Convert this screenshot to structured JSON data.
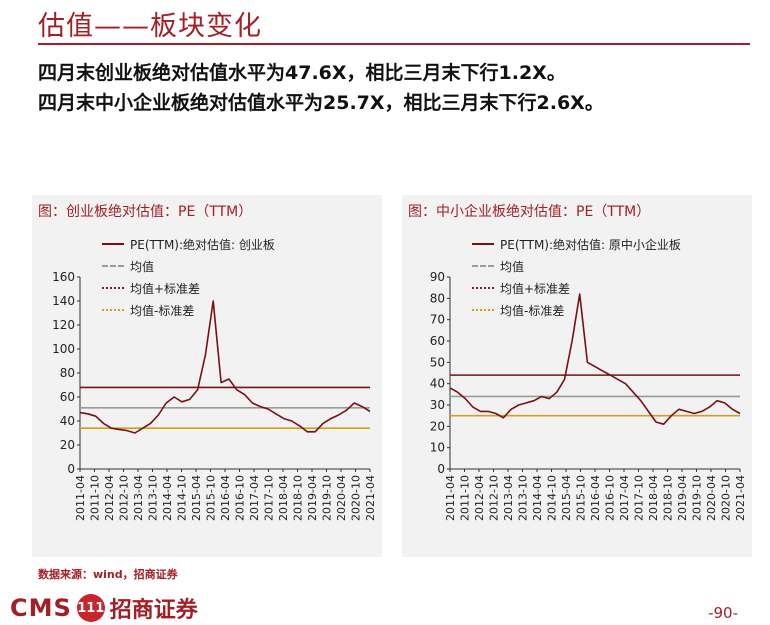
{
  "header": {
    "title": "估值——板块变化"
  },
  "summary": [
    "四月末创业板绝对估值水平为47.6X，相比三月末下行1.2X。",
    "四月末中小企业板绝对估值水平为25.7X，相比三月末下行2.6X。"
  ],
  "footer": {
    "source": "数据来源：wind，招商证券",
    "logo_text": "CMS",
    "logo_badge": "111",
    "logo_cn": "招商证券",
    "page": "-90-"
  },
  "colors": {
    "brand": "#a31f26",
    "pe_line": "#7a0f14",
    "mean": "#9a9a9a",
    "upper": "#8b1a1a",
    "lower": "#d4a017"
  },
  "chart_data": [
    {
      "type": "line",
      "title": "图：创业板绝对估值：PE（TTM）",
      "legend": [
        "PE(TTM):绝对估值: 创业板",
        "均值",
        "均值+标准差",
        "均值-标准差"
      ],
      "ylim": [
        0,
        160
      ],
      "yticks": [
        "0",
        "20",
        "40",
        "60",
        "80",
        "100",
        "120",
        "140",
        "160"
      ],
      "xticks": [
        "2011-04",
        "2011-10",
        "2012-04",
        "2012-10",
        "2013-04",
        "2013-10",
        "2014-04",
        "2014-10",
        "2015-04",
        "2015-10",
        "2016-04",
        "2016-10",
        "2017-04",
        "2017-10",
        "2018-04",
        "2018-10",
        "2019-04",
        "2019-10",
        "2020-04",
        "2020-10",
        "2021-04"
      ],
      "reference_lines": {
        "mean": 51,
        "mean_plus_std": 68,
        "mean_minus_std": 34
      },
      "series": [
        {
          "name": "PE(TTM):绝对估值: 创业板",
          "values": [
            47,
            46,
            44,
            38,
            34,
            33,
            32,
            30,
            34,
            38,
            45,
            55,
            60,
            56,
            58,
            66,
            95,
            140,
            72,
            75,
            66,
            62,
            55,
            52,
            50,
            46,
            42,
            40,
            36,
            31,
            31,
            38,
            42,
            45,
            49,
            55,
            52,
            48
          ]
        }
      ]
    },
    {
      "type": "line",
      "title": "图：中小企业板绝对估值：PE（TTM）",
      "legend": [
        "PE(TTM):绝对估值: 原中小企业板",
        "均值",
        "均值+标准差",
        "均值-标准差"
      ],
      "ylim": [
        0,
        90
      ],
      "yticks": [
        "0",
        "10",
        "20",
        "30",
        "40",
        "50",
        "60",
        "70",
        "80",
        "90"
      ],
      "xticks": [
        "2011-04",
        "2011-10",
        "2012-04",
        "2012-10",
        "2013-04",
        "2013-10",
        "2014-04",
        "2014-10",
        "2015-04",
        "2015-10",
        "2016-04",
        "2016-10",
        "2017-04",
        "2017-10",
        "2018-04",
        "2018-10",
        "2019-04",
        "2019-10",
        "2020-04",
        "2020-10",
        "2021-04"
      ],
      "reference_lines": {
        "mean": 34,
        "mean_plus_std": 44,
        "mean_minus_std": 25
      },
      "series": [
        {
          "name": "PE(TTM):绝对估值: 原中小企业板",
          "values": [
            38,
            36,
            33,
            29,
            27,
            27,
            26,
            24,
            28,
            30,
            31,
            32,
            34,
            33,
            36,
            42,
            60,
            82,
            50,
            48,
            46,
            44,
            42,
            40,
            36,
            32,
            27,
            22,
            21,
            25,
            28,
            27,
            26,
            27,
            29,
            32,
            31,
            28,
            26
          ]
        }
      ]
    }
  ]
}
